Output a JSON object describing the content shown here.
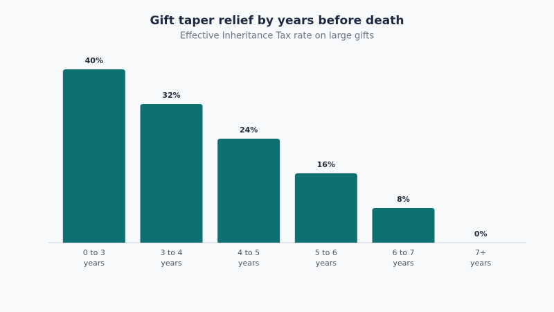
{
  "chart_data": {
    "type": "bar",
    "title": "Gift taper relief by years before death",
    "subtitle": "Effective Inheritance Tax rate on large gifts",
    "categories": [
      "0 to 3 years",
      "3 to 4 years",
      "4 to 5 years",
      "5 to 6 years",
      "6 to 7 years",
      "7+ years"
    ],
    "values": [
      40,
      32,
      24,
      16,
      8,
      0
    ],
    "value_labels": [
      "40%",
      "32%",
      "24%",
      "16%",
      "8%",
      "0%"
    ],
    "color": "#0e7072"
  }
}
